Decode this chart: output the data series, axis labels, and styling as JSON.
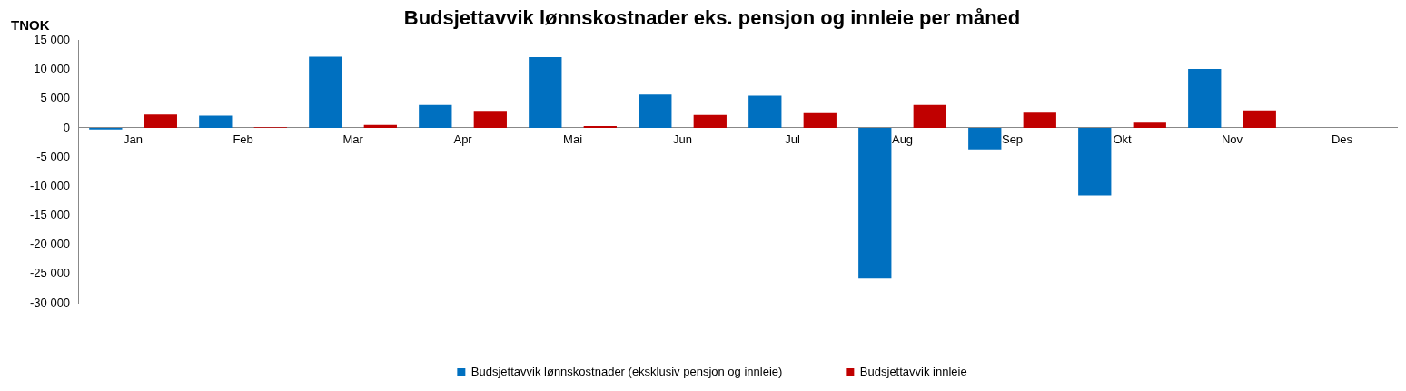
{
  "chart_data": {
    "type": "bar",
    "title": "Budsjettavvik lønnskostnader eks. pensjon og innleie per måned",
    "ylabel": "TNOK",
    "categories": [
      "Jan",
      "Feb",
      "Mar",
      "Apr",
      "Mai",
      "Jun",
      "Jul",
      "Aug",
      "Sep",
      "Okt",
      "Nov",
      "Des"
    ],
    "series": [
      {
        "name": "Budsjettavvik lønnskostnader (eksklusiv pensjon og innleie)",
        "color": "#0070c0",
        "values": [
          -300,
          2100,
          12200,
          3900,
          12100,
          5700,
          5500,
          -25700,
          -3700,
          -11600,
          10100,
          0
        ]
      },
      {
        "name": "Budsjettavvik innleie",
        "color": "#c00000",
        "values": [
          2300,
          100,
          500,
          2900,
          300,
          2200,
          2500,
          3900,
          2600,
          900,
          3000,
          0
        ]
      }
    ],
    "ylim": [
      -30000,
      15000
    ],
    "yticks": [
      {
        "value": -30000,
        "label": "-30 000"
      },
      {
        "value": -25000,
        "label": "-25 000"
      },
      {
        "value": -20000,
        "label": "-20 000"
      },
      {
        "value": -15000,
        "label": "-15 000"
      },
      {
        "value": -10000,
        "label": "-10 000"
      },
      {
        "value": -5000,
        "label": "-5 000"
      },
      0,
      {
        "value": 5000,
        "label": "5 000"
      },
      {
        "value": 10000,
        "label": "10 000"
      },
      {
        "value": 15000,
        "label": "15 000"
      }
    ],
    "grid": false,
    "legend": "bottom"
  }
}
